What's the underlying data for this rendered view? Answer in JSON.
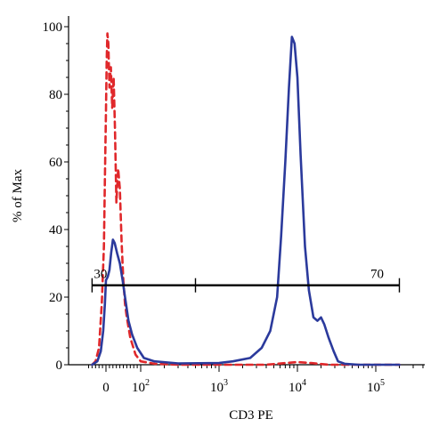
{
  "chart_data": {
    "type": "line",
    "xlabel": "CD3 PE",
    "ylabel": "% of Max",
    "ylim": [
      0,
      100
    ],
    "y_ticks": [
      0,
      20,
      40,
      60,
      80,
      100
    ],
    "x_scale": "biexponential",
    "x_ticks": [
      {
        "label": "0",
        "exp": "",
        "value": 0
      },
      {
        "label": "10",
        "exp": "2",
        "value": 100
      },
      {
        "label": "10",
        "exp": "3",
        "value": 1000
      },
      {
        "label": "10",
        "exp": "4",
        "value": 10000
      },
      {
        "label": "10",
        "exp": "5",
        "value": 100000
      }
    ],
    "series": [
      {
        "color": "#e0282b",
        "dash": "dashed",
        "points": [
          [
            -40,
            0
          ],
          [
            -30,
            1
          ],
          [
            -20,
            5
          ],
          [
            -12,
            18
          ],
          [
            -6,
            35
          ],
          [
            -3,
            55
          ],
          [
            0,
            75
          ],
          [
            2,
            90
          ],
          [
            4,
            98
          ],
          [
            7,
            95
          ],
          [
            10,
            82
          ],
          [
            14,
            88
          ],
          [
            18,
            76
          ],
          [
            22,
            85
          ],
          [
            26,
            70
          ],
          [
            30,
            48
          ],
          [
            35,
            58
          ],
          [
            40,
            52
          ],
          [
            45,
            36
          ],
          [
            50,
            25
          ],
          [
            55,
            18
          ],
          [
            60,
            14
          ],
          [
            70,
            8
          ],
          [
            85,
            3
          ],
          [
            100,
            1
          ],
          [
            150,
            0.3
          ],
          [
            300,
            0
          ],
          [
            1000,
            0
          ],
          [
            4000,
            0
          ],
          [
            7000,
            0.5
          ],
          [
            10000,
            0.8
          ],
          [
            15000,
            0.5
          ],
          [
            25000,
            0
          ],
          [
            200000,
            0
          ]
        ]
      },
      {
        "color": "#2b3a9c",
        "dash": "solid",
        "points": [
          [
            -40,
            0
          ],
          [
            -25,
            1
          ],
          [
            -15,
            4
          ],
          [
            -8,
            10
          ],
          [
            -3,
            18
          ],
          [
            0,
            25
          ],
          [
            5,
            26
          ],
          [
            10,
            28
          ],
          [
            15,
            33
          ],
          [
            20,
            37
          ],
          [
            25,
            36
          ],
          [
            32,
            33
          ],
          [
            40,
            30
          ],
          [
            48,
            25
          ],
          [
            55,
            20
          ],
          [
            65,
            13
          ],
          [
            75,
            9
          ],
          [
            90,
            5
          ],
          [
            110,
            2
          ],
          [
            150,
            1
          ],
          [
            300,
            0.4
          ],
          [
            1000,
            0.5
          ],
          [
            1500,
            1
          ],
          [
            2500,
            2
          ],
          [
            3500,
            5
          ],
          [
            4500,
            10
          ],
          [
            5500,
            20
          ],
          [
            6200,
            38
          ],
          [
            7000,
            60
          ],
          [
            7800,
            82
          ],
          [
            8500,
            97
          ],
          [
            9200,
            95
          ],
          [
            10000,
            85
          ],
          [
            11000,
            62
          ],
          [
            12500,
            35
          ],
          [
            14000,
            22
          ],
          [
            16000,
            14
          ],
          [
            18000,
            13
          ],
          [
            20000,
            14
          ],
          [
            22000,
            12
          ],
          [
            25000,
            8
          ],
          [
            29000,
            4
          ],
          [
            33000,
            1
          ],
          [
            40000,
            0.3
          ],
          [
            60000,
            0
          ],
          [
            200000,
            0
          ]
        ]
      }
    ],
    "gate": {
      "left_label": "30",
      "right_label": "70",
      "y_level": 23.5,
      "x_start": -40,
      "x_split": 500,
      "x_end": 200000
    }
  }
}
